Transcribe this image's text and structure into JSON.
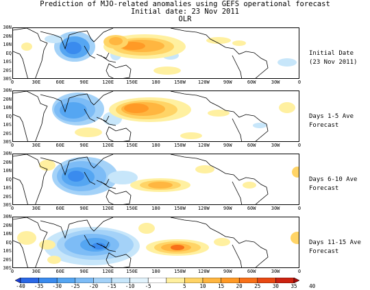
{
  "title": {
    "line1": "Prediction of MJO-related anomalies using GEFS operational forecast",
    "line2": "Initial date: 23 Nov 2011",
    "line3": "OLR"
  },
  "lat_labels": [
    "30N",
    "20N",
    "10N",
    "EQ",
    "10S",
    "20S",
    "30S"
  ],
  "lon_labels": [
    "0",
    "30E",
    "60E",
    "90E",
    "120E",
    "150E",
    "180",
    "150W",
    "120W",
    "90W",
    "60W",
    "30W",
    "0"
  ],
  "panels": [
    {
      "line1": "Initial Date",
      "line2": "(23 Nov 2011)"
    },
    {
      "line1": "Days 1-5 Ave",
      "line2": "Forecast"
    },
    {
      "line1": "Days 6-10 Ave",
      "line2": "Forecast"
    },
    {
      "line1": "Days 11-15 Ave",
      "line2": "Forecast"
    }
  ],
  "colorbar": {
    "levels": [
      "-40",
      "-35",
      "-30",
      "-25",
      "-20",
      "-15",
      "-10",
      "-5",
      "5",
      "10",
      "15",
      "20",
      "25",
      "30",
      "35",
      "40"
    ],
    "colors": [
      "#1a3fd6",
      "#2a68e6",
      "#3a8bee",
      "#55a6f2",
      "#7dbcf6",
      "#a4d2f8",
      "#c7e6fa",
      "#e2f3fc",
      "#ffffff",
      "#fff0a0",
      "#ffd466",
      "#ffb640",
      "#ff9a26",
      "#f87018",
      "#e84812",
      "#cc2210",
      "#a80a0a"
    ]
  },
  "colors": {
    "land_outline": "#000000",
    "positive_anomaly": "#ffb640",
    "negative_anomaly": "#55a6f2"
  }
}
